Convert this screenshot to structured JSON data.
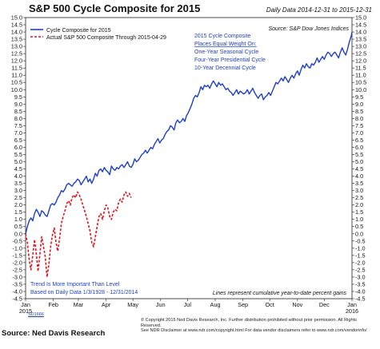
{
  "header": {
    "title": "S&P 500 Cycle Composite for 2015",
    "subtitle": "Daily Data 2014-12-31 to 2015-12-31"
  },
  "chart_data": {
    "type": "line",
    "title": "S&P 500 Cycle Composite for 2015",
    "source_label": "Source:  S&P Dow Jones Indices",
    "ylim": [
      -4.5,
      15.0
    ],
    "y_ticks": [
      -4.5,
      -4.0,
      -3.5,
      -3.0,
      -2.5,
      -2.0,
      -1.5,
      -1.0,
      -0.5,
      0.0,
      0.5,
      1.0,
      1.5,
      2.0,
      2.5,
      3.0,
      3.5,
      4.0,
      4.5,
      5.0,
      5.5,
      6.0,
      6.5,
      7.0,
      7.5,
      8.0,
      8.5,
      9.0,
      9.5,
      10.0,
      10.5,
      11.0,
      11.5,
      12.0,
      12.5,
      13.0,
      13.5,
      14.0,
      14.5,
      15.0
    ],
    "y_tick_labels": [
      "-4.5",
      "-4.0",
      "-3.5",
      "-3.0",
      "-2.5",
      "-2.0",
      "-1.5",
      "-1.0",
      "-0.5",
      "0.0",
      "0.5",
      "1.0",
      "1.5",
      "2.0",
      "2.5",
      "3.0",
      "3.5",
      "4.0",
      "4.5",
      "5.0",
      "5.5",
      "6.0",
      "6.5",
      "7.0",
      "7.5",
      "8.0",
      "8.5",
      "9.0",
      "9.5",
      "10.0",
      "10.5",
      "11.0",
      "11.5",
      "12.0",
      "12.5",
      "13.0",
      "13.5",
      "14.0",
      "14.5",
      "15.0"
    ],
    "xlim": [
      0,
      365
    ],
    "x_ticks": [
      {
        "day": 0,
        "label": "Jan",
        "sublabel": "2015"
      },
      {
        "day": 31,
        "label": "Feb"
      },
      {
        "day": 59,
        "label": "Mar"
      },
      {
        "day": 90,
        "label": "Apr"
      },
      {
        "day": 120,
        "label": "May"
      },
      {
        "day": 151,
        "label": "Jun"
      },
      {
        "day": 181,
        "label": "Jul"
      },
      {
        "day": 212,
        "label": "Aug"
      },
      {
        "day": 243,
        "label": "Sep"
      },
      {
        "day": 273,
        "label": "Oct"
      },
      {
        "day": 304,
        "label": "Nov"
      },
      {
        "day": 334,
        "label": "Dec"
      },
      {
        "day": 365,
        "label": "Jan",
        "sublabel": "2016"
      }
    ],
    "legend": {
      "placement": "top-left",
      "entries": [
        {
          "label": "Cycle Composite for 2015",
          "style": "solid",
          "color": "#1f3fc8"
        },
        {
          "label": "Actual S&P 500 Composite Through 2015-04-29",
          "style": "dashed",
          "color": "#e0141e"
        }
      ]
    },
    "annotations": {
      "composite_lines": [
        "2015 Cycle Composite",
        "Places Equal Weight On:",
        "One-Year Seasonal Cycle",
        "Four-Year Presidential Cycle",
        "10-Year Decennial Cycle"
      ],
      "bottom_left_lines": [
        "Trend Is More Important Than Level",
        "Based on Daily Data 1/3/1928 - 12/31/2014"
      ],
      "bottom_right": "Lines represent cumulative year-to-date percent gains"
    },
    "series": [
      {
        "name": "Cycle Composite for 2015",
        "color": "#1f3fc8",
        "style": "solid",
        "points": [
          [
            0,
            0
          ],
          [
            2,
            0.5
          ],
          [
            4,
            0.9
          ],
          [
            6,
            1.1
          ],
          [
            8,
            0.9
          ],
          [
            10,
            1.4
          ],
          [
            12,
            1.7
          ],
          [
            14,
            1.5
          ],
          [
            16,
            1.2
          ],
          [
            18,
            1.6
          ],
          [
            20,
            1.5
          ],
          [
            22,
            1.3
          ],
          [
            24,
            1.2
          ],
          [
            26,
            1.6
          ],
          [
            28,
            2.0
          ],
          [
            30,
            2.1
          ],
          [
            32,
            2.0
          ],
          [
            34,
            2.2
          ],
          [
            36,
            2.5
          ],
          [
            38,
            2.7
          ],
          [
            40,
            3.0
          ],
          [
            42,
            2.9
          ],
          [
            44,
            3.1
          ],
          [
            46,
            3.4
          ],
          [
            48,
            3.5
          ],
          [
            50,
            3.4
          ],
          [
            52,
            3.3
          ],
          [
            54,
            3.5
          ],
          [
            56,
            3.6
          ],
          [
            58,
            3.8
          ],
          [
            60,
            3.7
          ],
          [
            62,
            3.4
          ],
          [
            64,
            3.6
          ],
          [
            66,
            3.8
          ],
          [
            68,
            4.0
          ],
          [
            70,
            3.6
          ],
          [
            72,
            3.8
          ],
          [
            74,
            3.5
          ],
          [
            76,
            3.8
          ],
          [
            78,
            4.2
          ],
          [
            80,
            4.0
          ],
          [
            82,
            4.4
          ],
          [
            84,
            4.5
          ],
          [
            86,
            4.3
          ],
          [
            88,
            4.6
          ],
          [
            90,
            4.4
          ],
          [
            92,
            4.3
          ],
          [
            94,
            4.1
          ],
          [
            96,
            4.7
          ],
          [
            98,
            4.5
          ],
          [
            100,
            4.4
          ],
          [
            102,
            4.6
          ],
          [
            104,
            4.5
          ],
          [
            106,
            4.7
          ],
          [
            108,
            4.8
          ],
          [
            110,
            4.6
          ],
          [
            112,
            4.8
          ],
          [
            114,
            5.0
          ],
          [
            116,
            4.7
          ],
          [
            118,
            4.6
          ],
          [
            120,
            4.8
          ],
          [
            122,
            5.2
          ],
          [
            124,
            5.0
          ],
          [
            126,
            5.1
          ],
          [
            128,
            5.3
          ],
          [
            130,
            5.5
          ],
          [
            132,
            5.6
          ],
          [
            134,
            5.8
          ],
          [
            136,
            5.6
          ],
          [
            138,
            5.8
          ],
          [
            140,
            6.0
          ],
          [
            142,
            5.9
          ],
          [
            144,
            6.2
          ],
          [
            146,
            6.4
          ],
          [
            148,
            6.6
          ],
          [
            150,
            6.3
          ],
          [
            152,
            6.5
          ],
          [
            154,
            6.6
          ],
          [
            156,
            6.9
          ],
          [
            158,
            7.1
          ],
          [
            160,
            7.2
          ],
          [
            162,
            7.5
          ],
          [
            164,
            7.4
          ],
          [
            166,
            7.2
          ],
          [
            168,
            7.7
          ],
          [
            170,
            7.9
          ],
          [
            172,
            7.7
          ],
          [
            174,
            7.8
          ],
          [
            176,
            8.0
          ],
          [
            178,
            7.8
          ],
          [
            180,
            8.2
          ],
          [
            182,
            8.4
          ],
          [
            184,
            8.7
          ],
          [
            186,
            9.0
          ],
          [
            188,
            9.4
          ],
          [
            190,
            9.6
          ],
          [
            192,
            9.5
          ],
          [
            194,
            9.8
          ],
          [
            196,
            10.2
          ],
          [
            198,
            10.0
          ],
          [
            200,
            10.3
          ],
          [
            202,
            10.2
          ],
          [
            204,
            10.3
          ],
          [
            206,
            10.1
          ],
          [
            208,
            10.4
          ],
          [
            210,
            10.6
          ],
          [
            212,
            10.4
          ],
          [
            214,
            10.2
          ],
          [
            216,
            10.5
          ],
          [
            218,
            10.3
          ],
          [
            220,
            10.4
          ],
          [
            222,
            10.2
          ],
          [
            224,
            10.0
          ],
          [
            226,
            10.1
          ],
          [
            228,
            9.9
          ],
          [
            230,
            9.8
          ],
          [
            232,
            9.6
          ],
          [
            234,
            9.8
          ],
          [
            236,
            10.0
          ],
          [
            238,
            9.7
          ],
          [
            240,
            9.9
          ],
          [
            242,
            9.8
          ],
          [
            244,
            9.7
          ],
          [
            246,
            9.8
          ],
          [
            248,
            10.0
          ],
          [
            250,
            9.7
          ],
          [
            252,
            9.9
          ],
          [
            254,
            10.1
          ],
          [
            256,
            9.8
          ],
          [
            258,
            9.6
          ],
          [
            260,
            9.4
          ],
          [
            262,
            9.6
          ],
          [
            264,
            9.7
          ],
          [
            266,
            9.3
          ],
          [
            268,
            9.5
          ],
          [
            270,
            9.6
          ],
          [
            272,
            9.8
          ],
          [
            274,
            9.6
          ],
          [
            276,
            9.9
          ],
          [
            278,
            10.2
          ],
          [
            280,
            10.5
          ],
          [
            282,
            10.4
          ],
          [
            284,
            10.6
          ],
          [
            286,
            10.8
          ],
          [
            288,
            10.6
          ],
          [
            290,
            10.9
          ],
          [
            292,
            10.7
          ],
          [
            294,
            10.5
          ],
          [
            296,
            10.8
          ],
          [
            298,
            11.0
          ],
          [
            300,
            10.8
          ],
          [
            302,
            11.1
          ],
          [
            304,
            11.3
          ],
          [
            306,
            11.0
          ],
          [
            308,
            11.4
          ],
          [
            310,
            11.7
          ],
          [
            312,
            11.5
          ],
          [
            314,
            11.8
          ],
          [
            316,
            11.6
          ],
          [
            318,
            11.5
          ],
          [
            320,
            11.8
          ],
          [
            322,
            11.7
          ],
          [
            324,
            11.9
          ],
          [
            326,
            12.2
          ],
          [
            328,
            11.9
          ],
          [
            330,
            12.1
          ],
          [
            332,
            12.3
          ],
          [
            334,
            12.1
          ],
          [
            336,
            12.4
          ],
          [
            338,
            12.6
          ],
          [
            340,
            12.5
          ],
          [
            342,
            12.3
          ],
          [
            344,
            12.5
          ],
          [
            346,
            12.6
          ],
          [
            348,
            12.4
          ],
          [
            350,
            12.2
          ],
          [
            352,
            12.6
          ],
          [
            354,
            12.9
          ],
          [
            356,
            12.6
          ],
          [
            358,
            12.4
          ],
          [
            360,
            12.8
          ],
          [
            362,
            13.3
          ],
          [
            364,
            13.7
          ],
          [
            365,
            14.0
          ]
        ]
      },
      {
        "name": "Actual S&P 500 Composite Through 2015-04-29",
        "color": "#e0141e",
        "style": "dashed",
        "points": [
          [
            0,
            0
          ],
          [
            2,
            -0.6
          ],
          [
            4,
            -1.8
          ],
          [
            6,
            -2.5
          ],
          [
            8,
            -1.5
          ],
          [
            10,
            -0.4
          ],
          [
            12,
            -1.4
          ],
          [
            14,
            -2.6
          ],
          [
            16,
            -1.4
          ],
          [
            18,
            -0.2
          ],
          [
            20,
            -0.9
          ],
          [
            22,
            -1.6
          ],
          [
            24,
            -3.0
          ],
          [
            26,
            -2.1
          ],
          [
            28,
            -0.9
          ],
          [
            30,
            -0.1
          ],
          [
            32,
            0.4
          ],
          [
            34,
            -0.6
          ],
          [
            36,
            -1.2
          ],
          [
            38,
            -0.3
          ],
          [
            40,
            0.7
          ],
          [
            42,
            1.2
          ],
          [
            44,
            1.6
          ],
          [
            46,
            2.1
          ],
          [
            48,
            2.3
          ],
          [
            50,
            2.0
          ],
          [
            52,
            2.5
          ],
          [
            54,
            2.7
          ],
          [
            56,
            2.5
          ],
          [
            58,
            2.9
          ],
          [
            60,
            2.7
          ],
          [
            62,
            2.4
          ],
          [
            64,
            2.0
          ],
          [
            66,
            1.6
          ],
          [
            68,
            1.2
          ],
          [
            70,
            0.7
          ],
          [
            72,
            0.2
          ],
          [
            74,
            -0.6
          ],
          [
            76,
            -0.9
          ],
          [
            78,
            -0.2
          ],
          [
            80,
            0.5
          ],
          [
            82,
            1.2
          ],
          [
            84,
            1.4
          ],
          [
            86,
            1.0
          ],
          [
            88,
            1.6
          ],
          [
            90,
            2.0
          ],
          [
            92,
            1.8
          ],
          [
            94,
            1.2
          ],
          [
            96,
            1.0
          ],
          [
            98,
            1.5
          ],
          [
            100,
            1.7
          ],
          [
            102,
            1.6
          ],
          [
            104,
            2.2
          ],
          [
            106,
            2.4
          ],
          [
            108,
            2.2
          ],
          [
            110,
            2.7
          ],
          [
            112,
            2.9
          ],
          [
            114,
            2.6
          ],
          [
            116,
            2.8
          ],
          [
            118,
            2.5
          ]
        ]
      }
    ]
  },
  "footer": {
    "id_link": "SD1666",
    "copyright_line1": "© Copyright 2015 Ned Davis Research, Inc. Further distribution prohibited without prior permission. All Rights Reserved.",
    "copyright_line2": "See NDR Disclaimer at www.ndr.com/copyright.html  For data vendor disclaimers refer to www.ndr.com/vendorinfo/",
    "source": "Source:  Ned Davis Research"
  }
}
